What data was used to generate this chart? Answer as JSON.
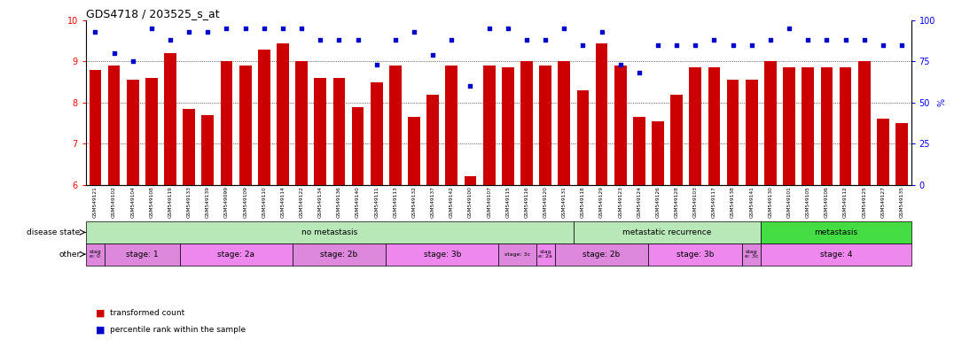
{
  "title": "GDS4718 / 203525_s_at",
  "samples": [
    "GSM549121",
    "GSM549102",
    "GSM549104",
    "GSM549108",
    "GSM549119",
    "GSM549133",
    "GSM549139",
    "GSM549099",
    "GSM549109",
    "GSM549110",
    "GSM549114",
    "GSM549122",
    "GSM549134",
    "GSM549136",
    "GSM549140",
    "GSM549111",
    "GSM549113",
    "GSM549132",
    "GSM549137",
    "GSM549142",
    "GSM549100",
    "GSM549107",
    "GSM549115",
    "GSM549116",
    "GSM549120",
    "GSM549131",
    "GSM549118",
    "GSM549129",
    "GSM549123",
    "GSM549124",
    "GSM549126",
    "GSM549128",
    "GSM549103",
    "GSM549117",
    "GSM549138",
    "GSM549141",
    "GSM549130",
    "GSM549101",
    "GSM549105",
    "GSM549106",
    "GSM549112",
    "GSM549125",
    "GSM549127",
    "GSM549135"
  ],
  "bar_values": [
    8.8,
    8.9,
    8.55,
    8.6,
    9.2,
    7.85,
    7.7,
    9.0,
    8.9,
    9.3,
    9.45,
    9.0,
    8.6,
    8.6,
    7.9,
    8.5,
    8.9,
    7.65,
    8.2,
    8.9,
    6.2,
    8.9,
    8.85,
    9.0,
    8.9,
    9.0,
    8.3,
    9.45,
    8.9,
    7.65,
    7.55,
    8.2,
    8.85,
    8.85,
    8.55,
    8.55,
    9.0,
    8.85,
    8.85,
    8.85,
    8.85,
    9.0,
    7.6,
    7.5
  ],
  "percentile_values": [
    93,
    80,
    75,
    95,
    88,
    93,
    93,
    95,
    95,
    95,
    95,
    95,
    88,
    88,
    88,
    73,
    88,
    93,
    79,
    88,
    60,
    95,
    95,
    88,
    88,
    95,
    85,
    93,
    73,
    68,
    85,
    85,
    85,
    88,
    85,
    85,
    88,
    95,
    88,
    88,
    88,
    88,
    85,
    85
  ],
  "ylim_left": [
    6,
    10
  ],
  "ylim_right": [
    0,
    100
  ],
  "yticks_left": [
    6,
    7,
    8,
    9,
    10
  ],
  "yticks_right": [
    0,
    25,
    50,
    75,
    100
  ],
  "bar_color": "#cc0000",
  "scatter_color": "#0000cc",
  "ds_groups": [
    {
      "label": "no metastasis",
      "start": 0,
      "end": 26,
      "color": "#b8e8b8"
    },
    {
      "label": "metastatic recurrence",
      "start": 26,
      "end": 36,
      "color": "#b8e8b8"
    },
    {
      "label": "metastasis",
      "start": 36,
      "end": 44,
      "color": "#44dd44"
    }
  ],
  "other_groups": [
    {
      "label": "stag\ne: 0",
      "start": 0,
      "end": 1,
      "color": "#dd88dd"
    },
    {
      "label": "stage: 1",
      "start": 1,
      "end": 5,
      "color": "#dd88dd"
    },
    {
      "label": "stage: 2a",
      "start": 5,
      "end": 11,
      "color": "#ee88ee"
    },
    {
      "label": "stage: 2b",
      "start": 11,
      "end": 16,
      "color": "#dd88dd"
    },
    {
      "label": "stage: 3b",
      "start": 16,
      "end": 22,
      "color": "#ee88ee"
    },
    {
      "label": "stage: 3c",
      "start": 22,
      "end": 24,
      "color": "#dd88dd"
    },
    {
      "label": "stag\ne: 2a",
      "start": 24,
      "end": 25,
      "color": "#ee88ee"
    },
    {
      "label": "stage: 2b",
      "start": 25,
      "end": 30,
      "color": "#dd88dd"
    },
    {
      "label": "stage: 3b",
      "start": 30,
      "end": 35,
      "color": "#ee88ee"
    },
    {
      "label": "stag\ne: 3c",
      "start": 35,
      "end": 36,
      "color": "#dd88dd"
    },
    {
      "label": "stage: 4",
      "start": 36,
      "end": 44,
      "color": "#ee88ee"
    }
  ],
  "grid_yticks": [
    7,
    8,
    9
  ],
  "background_color": "#ffffff"
}
